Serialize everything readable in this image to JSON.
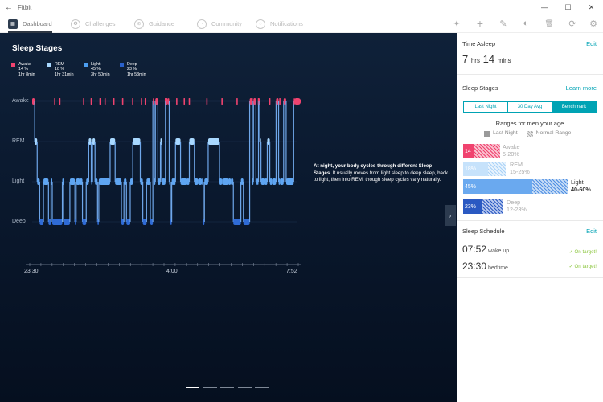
{
  "window": {
    "title": "Fitbit",
    "back_glyph": "←",
    "min_glyph": "—",
    "max_glyph": "☐",
    "close_glyph": "✕"
  },
  "nav": {
    "tabs": [
      {
        "label": "Dashboard",
        "icon": "dashboard-icon",
        "active": true
      },
      {
        "label": "Challenges",
        "icon": "challenges-icon"
      },
      {
        "label": "Guidance",
        "icon": "guidance-icon"
      },
      {
        "label": "Community",
        "icon": "community-icon"
      },
      {
        "label": "Notifications",
        "icon": "notifications-icon"
      }
    ],
    "tools": [
      {
        "name": "pin-icon",
        "glyph": "✦"
      },
      {
        "name": "add-icon",
        "glyph": "+"
      },
      {
        "name": "edit-icon",
        "glyph": "✎"
      },
      {
        "name": "theme-icon",
        "glyph": "◐"
      },
      {
        "name": "delete-icon",
        "glyph": "🗑"
      },
      {
        "name": "sync-icon",
        "glyph": "⟳"
      },
      {
        "name": "settings-icon",
        "glyph": "⚙"
      }
    ]
  },
  "main": {
    "title": "Sleep Stages",
    "legend": [
      {
        "name": "Awake",
        "pct": "14 %",
        "dur": "1hr 8min",
        "color": "#f0436f"
      },
      {
        "name": "REM",
        "pct": "18 %",
        "dur": "1hr 31min",
        "color": "#a8d8ff"
      },
      {
        "name": "Light",
        "pct": "45 %",
        "dur": "3hr 50min",
        "color": "#4c9ef1"
      },
      {
        "name": "Deep",
        "pct": "23 %",
        "dur": "1hr 53min",
        "color": "#2a61cb"
      }
    ],
    "stage_labels": [
      "Awake",
      "REM",
      "Light",
      "Deep"
    ],
    "x_labels": [
      "23:30",
      "4:00",
      "7:52"
    ],
    "description_bold": "At night, your body cycles through different Sleep Stages.",
    "description_rest": " It usually moves from light sleep to deep sleep, back to light, then into REM, though sleep cycles vary naturally.",
    "next_glyph": "›",
    "carousel_pages": 5,
    "carousel_active": 0
  },
  "side": {
    "time_asleep": {
      "header": "Time Asleep",
      "link": "Edit",
      "hours": "7",
      "hrs_unit": "hrs",
      "mins": "14",
      "mins_unit": "mins"
    },
    "sleep_stages": {
      "header": "Sleep Stages",
      "link": "Learn more",
      "segments": [
        "Last Night",
        "30 Day Avg",
        "Benchmark"
      ],
      "ranges_title": "Ranges for men your age",
      "legend_last_night": "Last Night",
      "legend_normal": "Normal Range",
      "rows": [
        {
          "name": "Awake",
          "value": "14",
          "range": "5-20%",
          "color": "#f0436f",
          "light": "#f7a1b6"
        },
        {
          "name": "REM",
          "value": "18%",
          "range": "15-25%",
          "color": "#bfe0fb",
          "light": "#d9ecfc"
        },
        {
          "name": "Light",
          "value": "45%",
          "range": "40-60%",
          "color": "#6aa9ef",
          "light": "#9cc6f3"
        },
        {
          "name": "Deep",
          "value": "23%",
          "range": "12-23%",
          "color": "#2a59c2",
          "light": "#7d9ddf"
        }
      ]
    },
    "schedule": {
      "header": "Sleep Schedule",
      "link": "Edit",
      "items": [
        {
          "time": "07:52",
          "label": "wake up",
          "status": "✓ On target!"
        },
        {
          "time": "23:30",
          "label": "bedtime",
          "status": "✓ On target!"
        }
      ]
    }
  },
  "chart_data": {
    "type": "line",
    "title": "Sleep Stages",
    "x_start": "23:30",
    "x_end": "7:52",
    "y_categories": [
      "Awake",
      "REM",
      "Light",
      "Deep"
    ],
    "series": [
      {
        "name": "Awake",
        "values": [
          14
        ],
        "unit": "%"
      },
      {
        "name": "REM",
        "values": [
          18
        ],
        "unit": "%"
      },
      {
        "name": "Light",
        "values": [
          45
        ],
        "unit": "%"
      },
      {
        "name": "Deep",
        "values": [
          23
        ],
        "unit": "%"
      }
    ],
    "segments": [
      [
        0,
        0
      ],
      [
        2,
        1
      ],
      [
        4,
        2
      ],
      [
        6,
        3
      ],
      [
        9,
        2
      ],
      [
        13,
        3
      ],
      [
        15,
        2
      ],
      [
        16,
        3
      ],
      [
        24,
        2
      ],
      [
        25,
        3
      ],
      [
        30,
        2
      ],
      [
        34,
        3
      ],
      [
        35,
        2
      ],
      [
        38,
        2
      ],
      [
        40,
        3
      ],
      [
        43,
        2
      ],
      [
        45,
        1
      ],
      [
        47,
        2
      ],
      [
        48,
        1
      ],
      [
        50,
        2
      ],
      [
        52,
        3
      ],
      [
        53,
        2
      ],
      [
        62,
        1
      ],
      [
        66,
        2
      ],
      [
        71,
        3
      ],
      [
        73,
        2
      ],
      [
        75,
        3
      ],
      [
        78,
        2
      ],
      [
        80,
        1
      ],
      [
        86,
        2
      ],
      [
        88,
        3
      ],
      [
        91,
        2
      ],
      [
        94,
        3
      ],
      [
        96,
        0
      ],
      [
        97,
        2
      ],
      [
        98,
        0
      ],
      [
        100,
        2
      ],
      [
        102,
        1
      ],
      [
        103,
        2
      ],
      [
        106,
        0
      ],
      [
        108,
        0
      ],
      [
        109,
        2
      ],
      [
        110,
        3
      ],
      [
        111,
        2
      ],
      [
        113,
        2
      ],
      [
        114,
        1
      ],
      [
        118,
        2
      ],
      [
        123,
        2
      ],
      [
        125,
        1
      ],
      [
        129,
        2
      ],
      [
        132,
        2
      ],
      [
        135,
        2
      ],
      [
        136,
        3
      ],
      [
        137,
        2
      ],
      [
        140,
        1
      ],
      [
        149,
        2
      ],
      [
        151,
        2
      ],
      [
        156,
        2
      ],
      [
        158,
        2
      ],
      [
        160,
        3
      ],
      [
        166,
        2
      ],
      [
        168,
        3
      ],
      [
        173,
        0
      ],
      [
        175,
        2
      ],
      [
        176,
        0
      ],
      [
        178,
        2
      ],
      [
        179,
        2
      ],
      [
        180,
        0
      ],
      [
        181,
        1
      ],
      [
        182,
        2
      ],
      [
        185,
        2
      ],
      [
        187,
        1
      ],
      [
        189,
        2
      ],
      [
        191,
        2
      ],
      [
        194,
        0
      ],
      [
        196,
        2
      ],
      [
        197,
        2
      ],
      [
        200,
        0
      ],
      [
        202,
        2
      ],
      [
        208,
        0
      ],
      [
        209,
        0
      ],
      [
        211,
        0
      ]
    ],
    "xrange": [
      0,
      211
    ],
    "awake_marks": [
      18,
      22,
      41,
      47,
      54,
      58,
      65,
      72,
      80,
      87,
      90,
      99,
      106,
      115,
      121,
      125,
      139,
      151,
      163,
      175,
      180,
      189,
      197
    ]
  }
}
